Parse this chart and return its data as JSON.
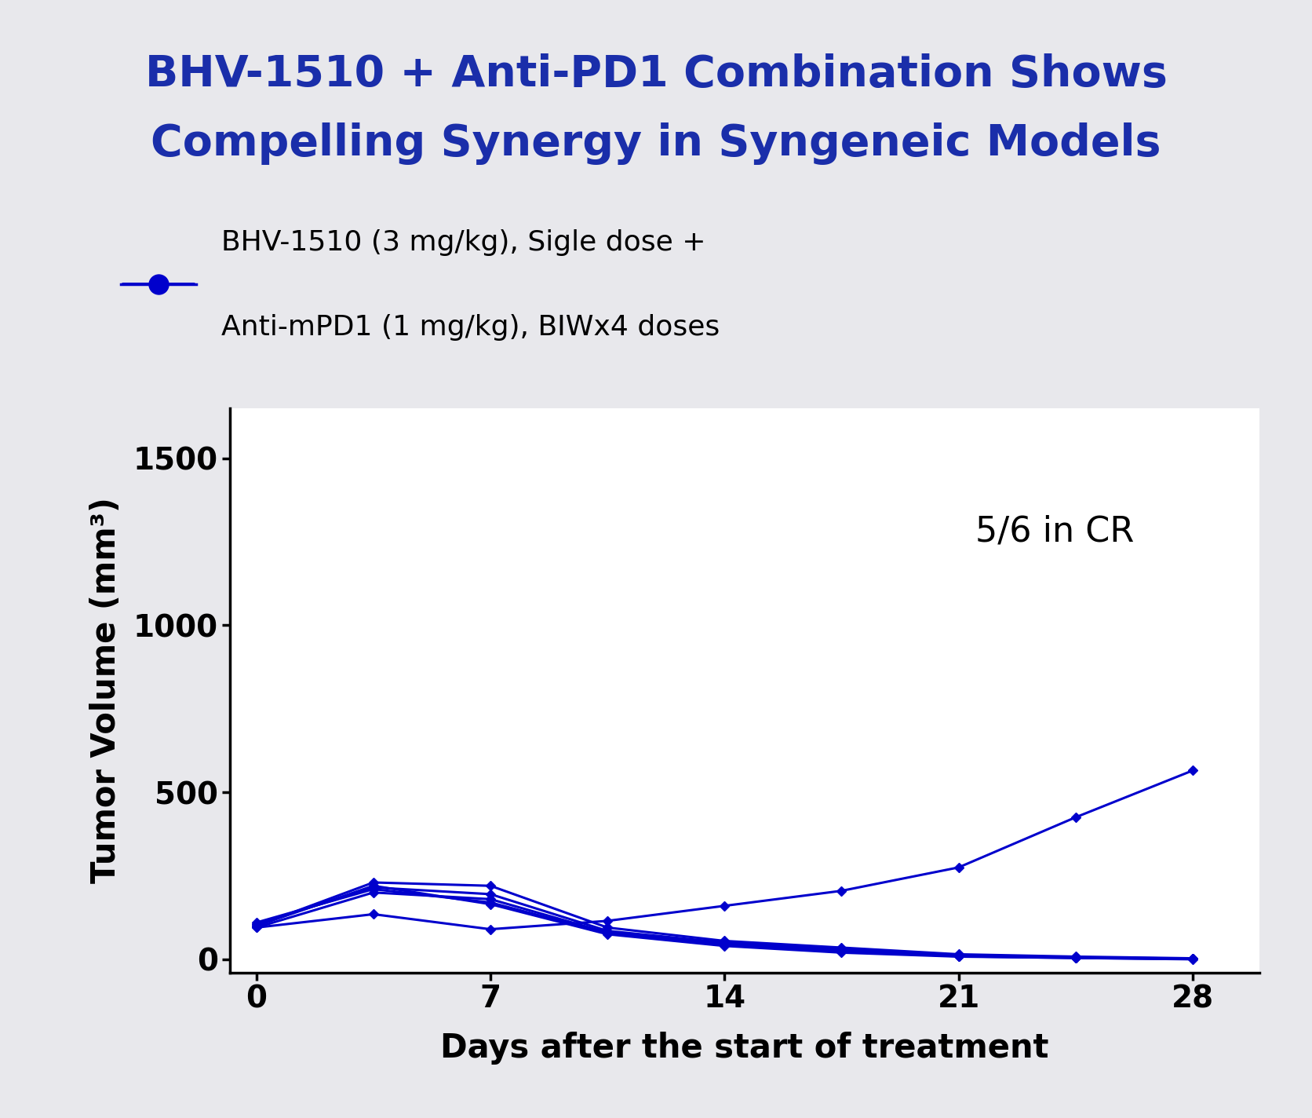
{
  "title_line1": "BHV-1510 + Anti-PD1 Combination Shows",
  "title_line2": "Compelling Synergy in Syngeneic Models",
  "title_color": "#1a2eaa",
  "title_bg_color": "#d4d4d8",
  "legend_label_line1": "BHV-1510 (3 mg/kg), Sigle dose +",
  "legend_label_line2": "Anti-mPD1 (1 mg/kg), BIWx4 doses",
  "xlabel": "Days after the start of treatment",
  "ylabel": "Tumor Volume (mm³)",
  "line_color": "#0000cc",
  "annotation": "5/6 in CR",
  "xticks": [
    0,
    7,
    14,
    21,
    28
  ],
  "yticks": [
    0,
    500,
    1000,
    1500
  ],
  "ylim": [
    -40,
    1650
  ],
  "xlim": [
    -0.8,
    30
  ],
  "days": [
    0,
    3.5,
    7,
    10.5,
    14,
    17.5,
    21,
    24.5,
    28
  ],
  "mouse_series": [
    [
      100,
      230,
      220,
      95,
      55,
      35,
      15,
      8,
      3
    ],
    [
      105,
      215,
      195,
      85,
      50,
      30,
      12,
      6,
      2
    ],
    [
      95,
      200,
      180,
      80,
      48,
      28,
      10,
      5,
      1
    ],
    [
      110,
      210,
      170,
      78,
      45,
      25,
      9,
      4,
      1
    ],
    [
      100,
      220,
      165,
      75,
      40,
      20,
      8,
      4,
      0
    ],
    [
      95,
      135,
      90,
      115,
      160,
      205,
      275,
      425,
      565
    ]
  ],
  "background_color": "#e8e8ec",
  "plot_bg_color": "#ffffff",
  "border_color": "#aaaaaa"
}
